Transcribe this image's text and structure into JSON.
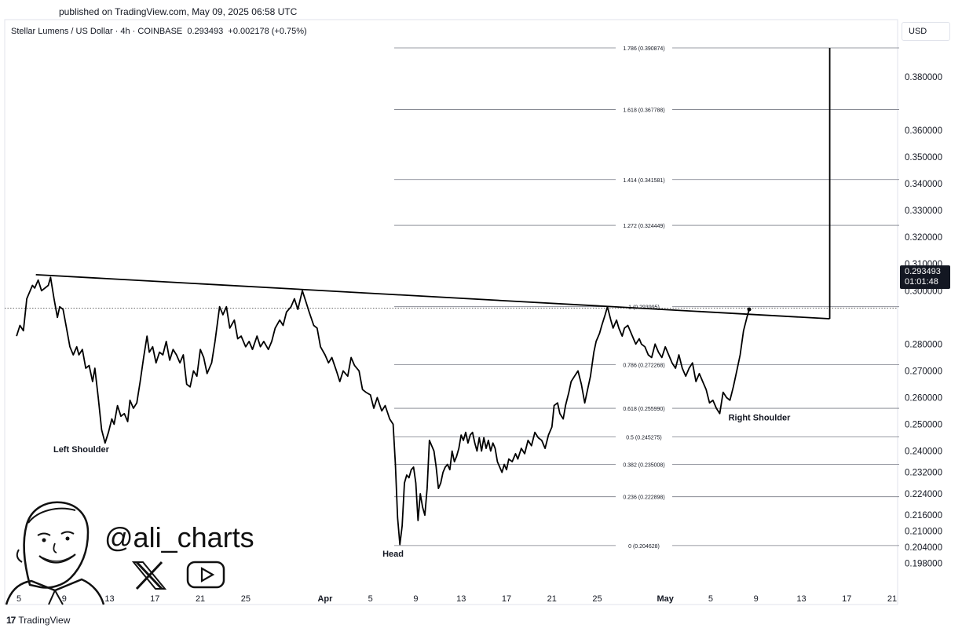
{
  "header": {
    "published": "published on TradingView.com, May 09, 2025 06:58 UTC",
    "symbol_name": "Stellar Lumens / US Dollar · 4h · COINBASE",
    "last_price": "0.293493",
    "change": "+0.002178 (+0.75%)",
    "currency": "USD"
  },
  "price_tag": {
    "price": "0.293493",
    "countdown": "01:01:48"
  },
  "footer": {
    "brand": "TradingView",
    "logo_text": "17"
  },
  "watermark": {
    "handle": "@ali_charts"
  },
  "colors": {
    "line": "#000000",
    "fib": "#555555",
    "grid_text": "#131722",
    "tag_bg": "#131722"
  },
  "chart_data": {
    "type": "line",
    "title": "",
    "xlabel": "",
    "ylabel": "",
    "ylim": [
      0.1955,
      0.3925
    ],
    "y_ticks": [
      {
        "value": 0.38,
        "label": "0.380000"
      },
      {
        "value": 0.36,
        "label": "0.360000"
      },
      {
        "value": 0.35,
        "label": "0.350000"
      },
      {
        "value": 0.34,
        "label": "0.340000"
      },
      {
        "value": 0.33,
        "label": "0.330000"
      },
      {
        "value": 0.32,
        "label": "0.320000"
      },
      {
        "value": 0.31,
        "label": "0.310000"
      },
      {
        "value": 0.3,
        "label": "0.300000"
      },
      {
        "value": 0.28,
        "label": "0.280000"
      },
      {
        "value": 0.27,
        "label": "0.270000"
      },
      {
        "value": 0.26,
        "label": "0.260000"
      },
      {
        "value": 0.25,
        "label": "0.250000"
      },
      {
        "value": 0.24,
        "label": "0.240000"
      },
      {
        "value": 0.232,
        "label": "0.232000"
      },
      {
        "value": 0.224,
        "label": "0.224000"
      },
      {
        "value": 0.216,
        "label": "0.216000"
      },
      {
        "value": 0.21,
        "label": "0.210000"
      },
      {
        "value": 0.204,
        "label": "0.204000"
      },
      {
        "value": 0.198,
        "label": "0.198000"
      }
    ],
    "x_ticks": [
      {
        "day": 5,
        "label": "5",
        "bold": false
      },
      {
        "day": 9,
        "label": "9",
        "bold": false
      },
      {
        "day": 13,
        "label": "13",
        "bold": false
      },
      {
        "day": 17,
        "label": "17",
        "bold": false
      },
      {
        "day": 21,
        "label": "21",
        "bold": false
      },
      {
        "day": 25,
        "label": "25",
        "bold": false
      },
      {
        "day": 32,
        "label": "Apr",
        "bold": true
      },
      {
        "day": 36,
        "label": "5",
        "bold": false
      },
      {
        "day": 40,
        "label": "9",
        "bold": false
      },
      {
        "day": 44,
        "label": "13",
        "bold": false
      },
      {
        "day": 48,
        "label": "17",
        "bold": false
      },
      {
        "day": 52,
        "label": "21",
        "bold": false
      },
      {
        "day": 56,
        "label": "25",
        "bold": false
      },
      {
        "day": 62,
        "label": "May",
        "bold": true
      },
      {
        "day": 66,
        "label": "5",
        "bold": false
      },
      {
        "day": 70,
        "label": "9",
        "bold": false
      },
      {
        "day": 74,
        "label": "13",
        "bold": false
      },
      {
        "day": 78,
        "label": "17",
        "bold": false
      },
      {
        "day": 82,
        "label": "21",
        "bold": false
      }
    ],
    "fib_levels": [
      {
        "ratio": "1.786",
        "value": 0.390874,
        "label": "1.786 (0.390874)"
      },
      {
        "ratio": "1.618",
        "value": 0.367788,
        "label": "1.618 (0.367788)"
      },
      {
        "ratio": "1.414",
        "value": 0.341581,
        "label": "1.414 (0.341581)"
      },
      {
        "ratio": "1.272",
        "value": 0.324449,
        "label": "1.272 (0.324449)"
      },
      {
        "ratio": "1",
        "value": 0.293995,
        "label": "1 (0.293995)"
      },
      {
        "ratio": "0.786",
        "value": 0.272268,
        "label": "0.786 (0.272268)"
      },
      {
        "ratio": "0.618",
        "value": 0.25599,
        "label": "0.618 (0.255990)"
      },
      {
        "ratio": "0.5",
        "value": 0.245275,
        "label": "0.5 (0.245275)"
      },
      {
        "ratio": "0.382",
        "value": 0.235008,
        "label": "0.382 (0.235008)"
      },
      {
        "ratio": "0.236",
        "value": 0.222898,
        "label": "0.236 (0.222898)"
      },
      {
        "ratio": "0",
        "value": 0.204628,
        "label": "0 (0.204628)"
      }
    ],
    "neckline": [
      {
        "x": 6.5,
        "y": 0.306
      },
      {
        "x": 76.5,
        "y": 0.2895
      }
    ],
    "target": [
      {
        "x": 76.5,
        "y": 0.2895
      },
      {
        "x": 76.5,
        "y": 0.390874
      }
    ],
    "current_price": 0.293493,
    "annotations": [
      {
        "text": "Left Shoulder",
        "x": 10.5,
        "y": 0.2395
      },
      {
        "text": "Head",
        "x": 38.0,
        "y": 0.2005
      },
      {
        "text": "Right Shoulder",
        "x": 70.3,
        "y": 0.2515
      }
    ],
    "series": [
      {
        "points": [
          [
            4.8,
            0.283
          ],
          [
            5.1,
            0.287
          ],
          [
            5.4,
            0.285
          ],
          [
            5.7,
            0.297
          ],
          [
            6.0,
            0.3
          ],
          [
            6.2,
            0.302
          ],
          [
            6.4,
            0.301
          ],
          [
            6.7,
            0.304
          ],
          [
            7.0,
            0.3
          ],
          [
            7.3,
            0.301
          ],
          [
            7.6,
            0.302
          ],
          [
            7.8,
            0.305
          ],
          [
            8.1,
            0.297
          ],
          [
            8.4,
            0.29
          ],
          [
            8.6,
            0.294
          ],
          [
            8.9,
            0.293
          ],
          [
            9.2,
            0.286
          ],
          [
            9.5,
            0.279
          ],
          [
            9.8,
            0.276
          ],
          [
            10.1,
            0.279
          ],
          [
            10.3,
            0.276
          ],
          [
            10.6,
            0.278
          ],
          [
            10.9,
            0.271
          ],
          [
            11.2,
            0.272
          ],
          [
            11.5,
            0.266
          ],
          [
            11.7,
            0.271
          ],
          [
            12.0,
            0.26
          ],
          [
            12.3,
            0.248
          ],
          [
            12.6,
            0.243
          ],
          [
            12.9,
            0.247
          ],
          [
            13.2,
            0.252
          ],
          [
            13.4,
            0.25
          ],
          [
            13.7,
            0.257
          ],
          [
            14.0,
            0.253
          ],
          [
            14.3,
            0.254
          ],
          [
            14.6,
            0.251
          ],
          [
            14.8,
            0.259
          ],
          [
            15.1,
            0.256
          ],
          [
            15.4,
            0.258
          ],
          [
            15.7,
            0.266
          ],
          [
            16.0,
            0.275
          ],
          [
            16.3,
            0.283
          ],
          [
            16.5,
            0.277
          ],
          [
            16.8,
            0.279
          ],
          [
            17.1,
            0.273
          ],
          [
            17.4,
            0.277
          ],
          [
            17.7,
            0.276
          ],
          [
            18.0,
            0.281
          ],
          [
            18.3,
            0.274
          ],
          [
            18.6,
            0.278
          ],
          [
            18.9,
            0.276
          ],
          [
            19.2,
            0.273
          ],
          [
            19.5,
            0.276
          ],
          [
            19.8,
            0.265
          ],
          [
            20.1,
            0.264
          ],
          [
            20.4,
            0.27
          ],
          [
            20.7,
            0.268
          ],
          [
            21.0,
            0.278
          ],
          [
            21.3,
            0.275
          ],
          [
            21.6,
            0.269
          ],
          [
            22.0,
            0.273
          ],
          [
            22.3,
            0.281
          ],
          [
            22.7,
            0.294
          ],
          [
            23.0,
            0.291
          ],
          [
            23.3,
            0.294
          ],
          [
            23.6,
            0.286
          ],
          [
            24.0,
            0.289
          ],
          [
            24.3,
            0.282
          ],
          [
            24.6,
            0.283
          ],
          [
            25.0,
            0.279
          ],
          [
            25.3,
            0.281
          ],
          [
            25.6,
            0.278
          ],
          [
            26.0,
            0.283
          ],
          [
            26.3,
            0.279
          ],
          [
            26.6,
            0.281
          ],
          [
            27.0,
            0.278
          ],
          [
            27.3,
            0.281
          ],
          [
            27.6,
            0.286
          ],
          [
            28.0,
            0.289
          ],
          [
            28.3,
            0.287
          ],
          [
            28.6,
            0.292
          ],
          [
            29.0,
            0.294
          ],
          [
            29.3,
            0.297
          ],
          [
            29.6,
            0.293
          ],
          [
            30.0,
            0.3
          ],
          [
            30.3,
            0.296
          ],
          [
            30.6,
            0.292
          ],
          [
            31.0,
            0.287
          ],
          [
            31.3,
            0.286
          ],
          [
            31.6,
            0.279
          ],
          [
            32.0,
            0.276
          ],
          [
            32.3,
            0.273
          ],
          [
            32.6,
            0.275
          ],
          [
            33.0,
            0.27
          ],
          [
            33.3,
            0.266
          ],
          [
            33.6,
            0.27
          ],
          [
            34.0,
            0.268
          ],
          [
            34.3,
            0.275
          ],
          [
            34.6,
            0.272
          ],
          [
            35.0,
            0.27
          ],
          [
            35.3,
            0.263
          ],
          [
            35.6,
            0.262
          ],
          [
            36.0,
            0.261
          ],
          [
            36.3,
            0.256
          ],
          [
            36.6,
            0.26
          ],
          [
            37.0,
            0.255
          ],
          [
            37.3,
            0.257
          ],
          [
            37.7,
            0.252
          ],
          [
            38.0,
            0.25
          ],
          [
            38.2,
            0.235
          ],
          [
            38.4,
            0.215
          ],
          [
            38.6,
            0.205
          ],
          [
            38.8,
            0.212
          ],
          [
            39.0,
            0.228
          ],
          [
            39.2,
            0.231
          ],
          [
            39.4,
            0.23
          ],
          [
            39.6,
            0.233
          ],
          [
            39.8,
            0.234
          ],
          [
            40.0,
            0.228
          ],
          [
            40.2,
            0.214
          ],
          [
            40.4,
            0.224
          ],
          [
            40.6,
            0.219
          ],
          [
            40.8,
            0.216
          ],
          [
            41.0,
            0.226
          ],
          [
            41.2,
            0.244
          ],
          [
            41.4,
            0.242
          ],
          [
            41.6,
            0.24
          ],
          [
            41.8,
            0.234
          ],
          [
            42.0,
            0.226
          ],
          [
            42.2,
            0.228
          ],
          [
            42.4,
            0.232
          ],
          [
            42.6,
            0.234
          ],
          [
            42.8,
            0.235
          ],
          [
            43.0,
            0.233
          ],
          [
            43.2,
            0.24
          ],
          [
            43.4,
            0.236
          ],
          [
            43.6,
            0.238
          ],
          [
            43.8,
            0.241
          ],
          [
            44.0,
            0.246
          ],
          [
            44.2,
            0.244
          ],
          [
            44.4,
            0.247
          ],
          [
            44.6,
            0.243
          ],
          [
            44.8,
            0.246
          ],
          [
            45.0,
            0.247
          ],
          [
            45.2,
            0.243
          ],
          [
            45.4,
            0.24
          ],
          [
            45.6,
            0.245
          ],
          [
            45.8,
            0.24
          ],
          [
            46.0,
            0.245
          ],
          [
            46.2,
            0.241
          ],
          [
            46.4,
            0.244
          ],
          [
            46.6,
            0.24
          ],
          [
            46.8,
            0.243
          ],
          [
            47.0,
            0.241
          ],
          [
            47.2,
            0.236
          ],
          [
            47.4,
            0.234
          ],
          [
            47.6,
            0.232
          ],
          [
            47.8,
            0.235
          ],
          [
            48.0,
            0.233
          ],
          [
            48.2,
            0.237
          ],
          [
            48.5,
            0.236
          ],
          [
            48.8,
            0.239
          ],
          [
            49.0,
            0.237
          ],
          [
            49.3,
            0.241
          ],
          [
            49.6,
            0.239
          ],
          [
            49.9,
            0.244
          ],
          [
            50.2,
            0.242
          ],
          [
            50.5,
            0.247
          ],
          [
            50.8,
            0.245
          ],
          [
            51.1,
            0.244
          ],
          [
            51.4,
            0.241
          ],
          [
            51.7,
            0.246
          ],
          [
            52.0,
            0.249
          ],
          [
            52.2,
            0.257
          ],
          [
            52.5,
            0.258
          ],
          [
            52.7,
            0.254
          ],
          [
            53.0,
            0.252
          ],
          [
            53.2,
            0.257
          ],
          [
            53.5,
            0.262
          ],
          [
            53.7,
            0.266
          ],
          [
            54.0,
            0.268
          ],
          [
            54.3,
            0.27
          ],
          [
            54.6,
            0.265
          ],
          [
            54.9,
            0.258
          ],
          [
            55.1,
            0.262
          ],
          [
            55.4,
            0.268
          ],
          [
            55.7,
            0.277
          ],
          [
            55.9,
            0.281
          ],
          [
            56.2,
            0.284
          ],
          [
            56.4,
            0.287
          ],
          [
            56.7,
            0.291
          ],
          [
            56.9,
            0.294
          ],
          [
            57.2,
            0.289
          ],
          [
            57.4,
            0.286
          ],
          [
            57.7,
            0.289
          ],
          [
            57.9,
            0.286
          ],
          [
            58.2,
            0.283
          ],
          [
            58.4,
            0.286
          ],
          [
            58.7,
            0.287
          ],
          [
            58.9,
            0.285
          ],
          [
            59.2,
            0.282
          ],
          [
            59.4,
            0.28
          ],
          [
            59.7,
            0.282
          ],
          [
            59.9,
            0.28
          ],
          [
            60.2,
            0.279
          ],
          [
            60.5,
            0.276
          ],
          [
            60.8,
            0.275
          ],
          [
            61.1,
            0.28
          ],
          [
            61.4,
            0.277
          ],
          [
            61.7,
            0.275
          ],
          [
            62.0,
            0.279
          ],
          [
            62.3,
            0.276
          ],
          [
            62.6,
            0.273
          ],
          [
            62.9,
            0.271
          ],
          [
            63.2,
            0.276
          ],
          [
            63.5,
            0.271
          ],
          [
            63.8,
            0.268
          ],
          [
            64.1,
            0.271
          ],
          [
            64.4,
            0.273
          ],
          [
            64.7,
            0.266
          ],
          [
            65.0,
            0.269
          ],
          [
            65.3,
            0.266
          ],
          [
            65.6,
            0.263
          ],
          [
            65.9,
            0.258
          ],
          [
            66.2,
            0.259
          ],
          [
            66.5,
            0.256
          ],
          [
            66.8,
            0.254
          ],
          [
            67.1,
            0.262
          ],
          [
            67.4,
            0.26
          ],
          [
            67.7,
            0.259
          ],
          [
            68.0,
            0.264
          ],
          [
            68.3,
            0.27
          ],
          [
            68.6,
            0.276
          ],
          [
            68.9,
            0.285
          ],
          [
            69.2,
            0.29
          ],
          [
            69.4,
            0.293
          ]
        ]
      }
    ]
  }
}
